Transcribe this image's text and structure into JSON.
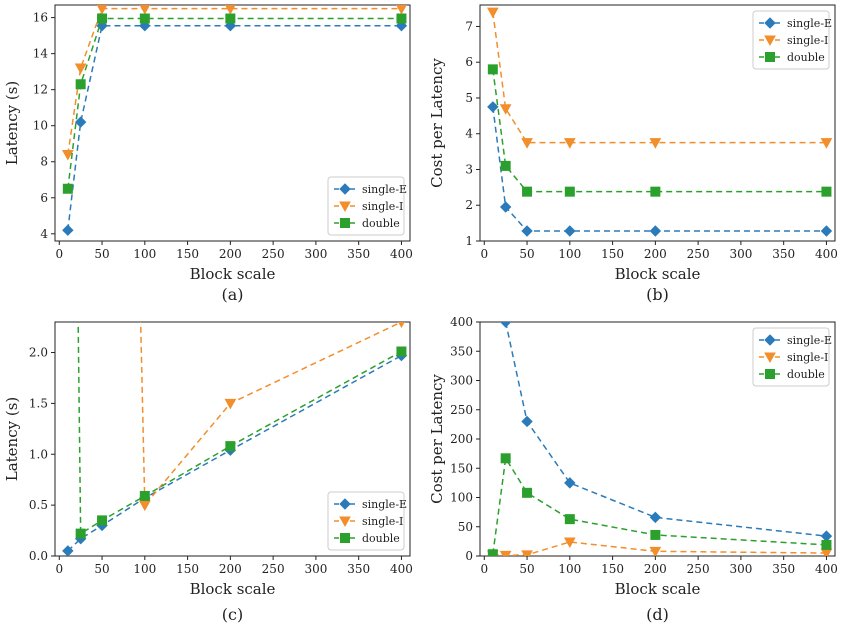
{
  "figure": {
    "colors": {
      "single-E": "#2b7bba",
      "single-I": "#f28e2b",
      "double": "#2ca02c"
    },
    "charts": [
      "a",
      "b",
      "c",
      "d"
    ]
  },
  "chart_data": [
    {
      "id": "a",
      "type": "line",
      "caption": "(a)",
      "xlabel": "Block scale",
      "ylabel": "Latency (s)",
      "xlim": [
        -5,
        410
      ],
      "ylim": [
        3.6,
        16.7
      ],
      "xticks": [
        0,
        50,
        100,
        150,
        200,
        250,
        300,
        350,
        400
      ],
      "xtick_labels": [
        "0",
        "50",
        "100",
        "150",
        "200",
        "250",
        "300",
        "350",
        "400"
      ],
      "yticks": [
        4,
        6,
        8,
        10,
        12,
        14,
        16
      ],
      "ytick_labels": [
        "4",
        "6",
        "8",
        "10",
        "12",
        "14",
        "16"
      ],
      "legend": "lower-right",
      "grid": false,
      "x": [
        10,
        25,
        50,
        100,
        200,
        400
      ],
      "series": [
        {
          "name": "single-E",
          "values": [
            4.2,
            10.2,
            15.55,
            15.55,
            15.55,
            15.55
          ]
        },
        {
          "name": "single-I",
          "values": [
            8.4,
            13.2,
            16.5,
            16.5,
            16.5,
            16.5
          ]
        },
        {
          "name": "double",
          "values": [
            6.5,
            12.3,
            15.95,
            15.95,
            15.95,
            15.95
          ]
        }
      ]
    },
    {
      "id": "b",
      "type": "line",
      "caption": "(b)",
      "xlabel": "Block scale",
      "ylabel": "Cost per Latency",
      "xlim": [
        -5,
        410
      ],
      "ylim": [
        1.0,
        7.6
      ],
      "xticks": [
        0,
        50,
        100,
        150,
        200,
        250,
        300,
        350,
        400
      ],
      "xtick_labels": [
        "0",
        "50",
        "100",
        "150",
        "200",
        "250",
        "300",
        "350",
        "400"
      ],
      "yticks": [
        1,
        2,
        3,
        4,
        5,
        6,
        7
      ],
      "ytick_labels": [
        "1",
        "2",
        "3",
        "4",
        "5",
        "6",
        "7"
      ],
      "legend": "upper-right",
      "grid": false,
      "x": [
        10,
        25,
        50,
        100,
        200,
        400
      ],
      "series": [
        {
          "name": "single-E",
          "values": [
            4.75,
            1.95,
            1.28,
            1.28,
            1.28,
            1.28
          ]
        },
        {
          "name": "single-I",
          "values": [
            7.4,
            4.7,
            3.75,
            3.75,
            3.75,
            3.75
          ]
        },
        {
          "name": "double",
          "values": [
            5.8,
            3.1,
            2.38,
            2.38,
            2.38,
            2.38
          ]
        }
      ]
    },
    {
      "id": "c",
      "type": "line",
      "caption": "(c)",
      "xlabel": "Block scale",
      "ylabel": "Latency (s)",
      "xlim": [
        -5,
        410
      ],
      "ylim": [
        0,
        2.3
      ],
      "xticks": [
        0,
        50,
        100,
        150,
        200,
        250,
        300,
        350,
        400
      ],
      "xtick_labels": [
        "0",
        "50",
        "100",
        "150",
        "200",
        "250",
        "300",
        "350",
        "400"
      ],
      "yticks": [
        0,
        0.5,
        1.0,
        1.5,
        2.0
      ],
      "ytick_labels": [
        "0.0",
        "0.5",
        "1.0",
        "1.5",
        "2.0"
      ],
      "legend": "lower-right",
      "grid": false,
      "series": [
        {
          "name": "single-E",
          "x": [
            10,
            25,
            50,
            100,
            200,
            400
          ],
          "values": [
            0.05,
            0.17,
            0.3,
            0.57,
            1.04,
            1.97
          ]
        },
        {
          "name": "single-I",
          "x": [
            95,
            100,
            200,
            400
          ],
          "values": [
            2.35,
            0.5,
            1.5,
            2.3
          ]
        },
        {
          "name": "double",
          "x": [
            22,
            25,
            50,
            100,
            200,
            400
          ],
          "values": [
            2.35,
            0.22,
            0.35,
            0.59,
            1.08,
            2.01
          ]
        }
      ]
    },
    {
      "id": "d",
      "type": "line",
      "caption": "(d)",
      "xlabel": "Block scale",
      "ylabel": "Cost per Latency",
      "xlim": [
        -5,
        410
      ],
      "ylim": [
        0,
        400
      ],
      "xticks": [
        0,
        50,
        100,
        150,
        200,
        250,
        300,
        350,
        400
      ],
      "xtick_labels": [
        "0",
        "50",
        "100",
        "150",
        "200",
        "250",
        "300",
        "350",
        "400"
      ],
      "yticks": [
        0,
        50,
        100,
        150,
        200,
        250,
        300,
        350,
        400
      ],
      "ytick_labels": [
        "0",
        "50",
        "100",
        "150",
        "200",
        "250",
        "300",
        "350",
        "400"
      ],
      "legend": "upper-right",
      "grid": false,
      "series": [
        {
          "name": "single-E",
          "x": [
            25,
            50,
            100,
            200,
            400
          ],
          "values": [
            400,
            230,
            125,
            66,
            34
          ]
        },
        {
          "name": "single-I",
          "x": [
            10,
            25,
            50,
            100,
            200,
            400
          ],
          "values": [
            2,
            1,
            2,
            24,
            8,
            5
          ]
        },
        {
          "name": "double",
          "x": [
            10,
            25,
            50,
            100,
            200,
            400
          ],
          "values": [
            3,
            167,
            108,
            63,
            36,
            19
          ]
        }
      ]
    }
  ]
}
